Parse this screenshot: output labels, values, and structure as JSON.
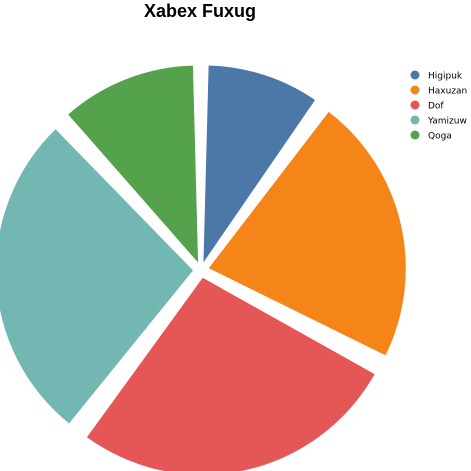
{
  "chart_data": {
    "type": "pie",
    "title": "Xabex Fuxug",
    "legend_position": "top-right",
    "exploded": true,
    "start_angle_deg": 0,
    "direction": "clockwise",
    "slices": [
      {
        "label": "Higipuk",
        "value": 9.6,
        "color": "#4c78a8"
      },
      {
        "label": "Haxuzan",
        "value": 21.8,
        "color": "#f58518"
      },
      {
        "label": "Dof",
        "value": 26.6,
        "color": "#e45756"
      },
      {
        "label": "Yamizuw",
        "value": 26.6,
        "color": "#72b7b2"
      },
      {
        "label": "Qoga",
        "value": 11.4,
        "color": "#54a24b"
      }
    ]
  }
}
